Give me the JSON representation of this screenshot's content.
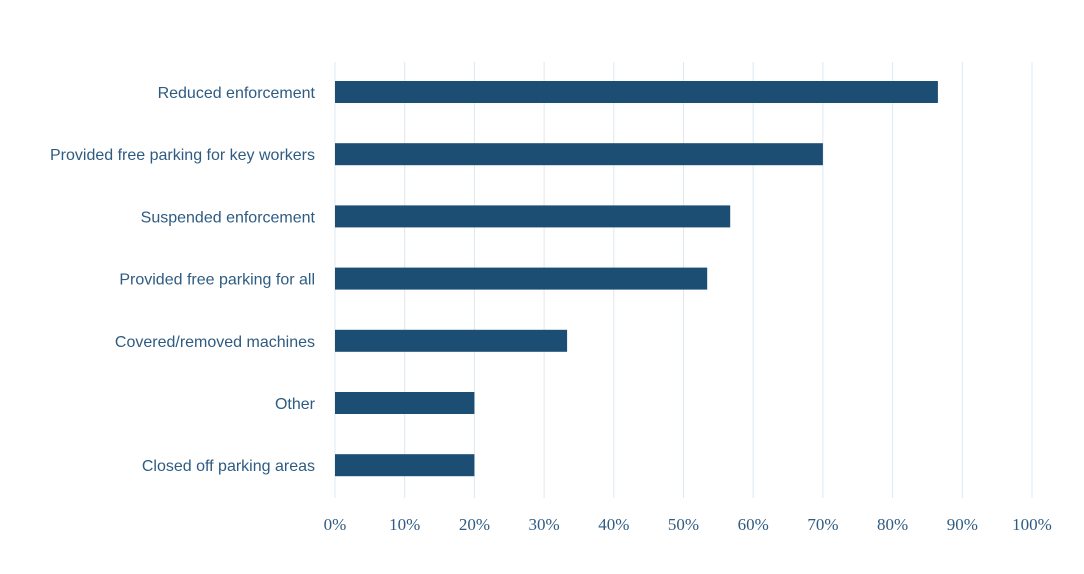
{
  "chart_data": {
    "type": "bar",
    "orientation": "horizontal",
    "categories": [
      "Reduced enforcement",
      "Provided free parking for key workers",
      "Suspended enforcement",
      "Provided free parking for all",
      "Covered/removed machines",
      "Other",
      "Closed off parking areas"
    ],
    "values": [
      86.5,
      70,
      56.7,
      53.4,
      33.3,
      20,
      20
    ],
    "xlim": [
      0,
      100
    ],
    "xticks": [
      0,
      10,
      20,
      30,
      40,
      50,
      60,
      70,
      80,
      90,
      100
    ],
    "xtick_labels": [
      "0%",
      "10%",
      "20%",
      "30%",
      "40%",
      "50%",
      "60%",
      "70%",
      "80%",
      "90%",
      "100%"
    ],
    "grid": "vertical",
    "legend": "none",
    "colors": {
      "bar": "#1b4e72",
      "grid": "#dce8f2",
      "text": "#2e5b82"
    }
  }
}
